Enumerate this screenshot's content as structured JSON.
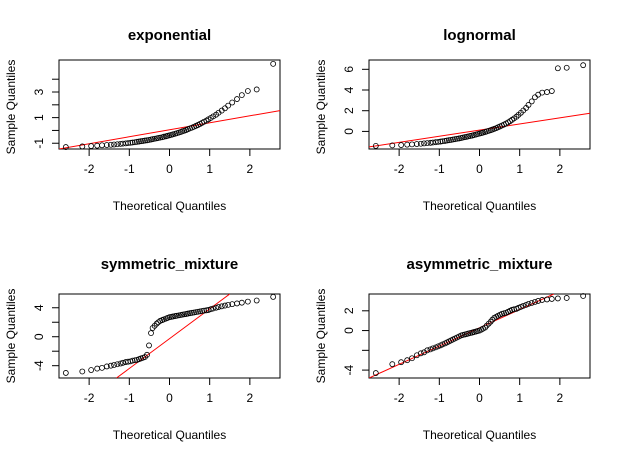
{
  "chart_data": [
    {
      "type": "scatter",
      "title": "exponential",
      "xlabel": "Theoretical Quantiles",
      "ylabel": "Sample Quantiles",
      "xlim": [
        -2.75,
        2.75
      ],
      "ylim": [
        -1.45,
        5.5
      ],
      "xticks": [
        -2,
        -1,
        0,
        1,
        2
      ],
      "yticks": [
        -1,
        1,
        3
      ],
      "ytick_minor": [
        0,
        2,
        4
      ],
      "grid": false,
      "point_color": "#000000",
      "line_color": "#ff0000",
      "reference_line": {
        "x": [
          -2.75,
          2.75
        ],
        "y": [
          -1.45,
          1.55
        ]
      },
      "points": {
        "x": [
          -2.58,
          -2.17,
          -1.95,
          -1.8,
          -1.68,
          -1.56,
          -1.46,
          -1.38,
          -1.3,
          -1.22,
          -1.16,
          -1.09,
          -1.03,
          -0.97,
          -0.92,
          -0.86,
          -0.81,
          -0.76,
          -0.71,
          -0.66,
          -0.61,
          -0.56,
          -0.51,
          -0.46,
          -0.42,
          -0.37,
          -0.32,
          -0.28,
          -0.23,
          -0.18,
          -0.14,
          -0.09,
          -0.05,
          0.0,
          0.05,
          0.09,
          0.14,
          0.18,
          0.23,
          0.28,
          0.32,
          0.37,
          0.42,
          0.46,
          0.51,
          0.56,
          0.61,
          0.66,
          0.71,
          0.76,
          0.81,
          0.86,
          0.92,
          0.97,
          1.03,
          1.09,
          1.16,
          1.22,
          1.3,
          1.38,
          1.46,
          1.56,
          1.68,
          1.8,
          1.95,
          2.17,
          2.58
        ],
        "y": [
          -1.3,
          -1.25,
          -1.22,
          -1.19,
          -1.16,
          -1.14,
          -1.12,
          -1.1,
          -1.08,
          -1.05,
          -1.03,
          -1.01,
          -0.99,
          -0.96,
          -0.94,
          -0.92,
          -0.89,
          -0.87,
          -0.84,
          -0.82,
          -0.79,
          -0.77,
          -0.74,
          -0.71,
          -0.68,
          -0.65,
          -0.62,
          -0.59,
          -0.56,
          -0.53,
          -0.49,
          -0.46,
          -0.42,
          -0.38,
          -0.34,
          -0.3,
          -0.26,
          -0.22,
          -0.17,
          -0.12,
          -0.07,
          -0.02,
          0.04,
          0.1,
          0.16,
          0.22,
          0.29,
          0.36,
          0.43,
          0.51,
          0.59,
          0.68,
          0.77,
          0.87,
          0.98,
          1.1,
          1.23,
          1.38,
          1.55,
          1.73,
          1.94,
          2.18,
          2.45,
          2.76,
          3.08,
          3.2,
          5.2
        ]
      }
    },
    {
      "type": "scatter",
      "title": "lognormal",
      "xlabel": "Theoretical Quantiles",
      "ylabel": "Sample Quantiles",
      "xlim": [
        -2.75,
        2.75
      ],
      "ylim": [
        -1.7,
        6.9
      ],
      "xticks": [
        -2,
        -1,
        0,
        1,
        2
      ],
      "yticks": [
        0,
        2,
        4,
        6
      ],
      "ytick_minor": [],
      "grid": false,
      "point_color": "#000000",
      "line_color": "#ff0000",
      "reference_line": {
        "x": [
          -2.75,
          2.75
        ],
        "y": [
          -1.5,
          1.75
        ]
      },
      "points": {
        "x": [
          -2.58,
          -2.17,
          -1.95,
          -1.8,
          -1.68,
          -1.56,
          -1.46,
          -1.38,
          -1.3,
          -1.22,
          -1.16,
          -1.09,
          -1.03,
          -0.97,
          -0.92,
          -0.86,
          -0.81,
          -0.76,
          -0.71,
          -0.66,
          -0.61,
          -0.56,
          -0.51,
          -0.46,
          -0.42,
          -0.37,
          -0.32,
          -0.28,
          -0.23,
          -0.18,
          -0.14,
          -0.09,
          -0.05,
          0.0,
          0.05,
          0.09,
          0.14,
          0.18,
          0.23,
          0.28,
          0.32,
          0.37,
          0.42,
          0.46,
          0.51,
          0.56,
          0.61,
          0.66,
          0.71,
          0.76,
          0.81,
          0.86,
          0.92,
          0.97,
          1.03,
          1.09,
          1.16,
          1.22,
          1.3,
          1.38,
          1.46,
          1.56,
          1.68,
          1.8,
          1.95,
          2.17,
          2.58
        ],
        "y": [
          -1.4,
          -1.35,
          -1.32,
          -1.28,
          -1.25,
          -1.22,
          -1.19,
          -1.16,
          -1.13,
          -1.1,
          -1.07,
          -1.04,
          -1.01,
          -0.98,
          -0.95,
          -0.92,
          -0.88,
          -0.85,
          -0.82,
          -0.78,
          -0.75,
          -0.71,
          -0.68,
          -0.64,
          -0.6,
          -0.56,
          -0.52,
          -0.48,
          -0.44,
          -0.4,
          -0.35,
          -0.31,
          -0.26,
          -0.21,
          -0.16,
          -0.11,
          -0.06,
          0.0,
          0.06,
          0.12,
          0.18,
          0.25,
          0.32,
          0.4,
          0.48,
          0.57,
          0.66,
          0.76,
          0.87,
          0.99,
          1.12,
          1.26,
          1.42,
          1.6,
          1.8,
          2.02,
          2.27,
          2.56,
          2.9,
          3.3,
          3.55,
          3.75,
          3.8,
          3.9,
          6.1,
          6.15,
          6.4
        ]
      }
    },
    {
      "type": "scatter",
      "title": "symmetric_mixture",
      "xlabel": "Theoretical Quantiles",
      "ylabel": "Sample Quantiles",
      "xlim": [
        -2.75,
        2.75
      ],
      "ylim": [
        -5.7,
        5.9
      ],
      "xticks": [
        -2,
        -1,
        0,
        1,
        2
      ],
      "yticks": [
        -4,
        0,
        4
      ],
      "ytick_minor": [
        -2,
        2
      ],
      "grid": false,
      "point_color": "#000000",
      "line_color": "#ff0000",
      "reference_line": {
        "x": [
          -1.32,
          1.5
        ],
        "y": [
          -5.7,
          5.9
        ]
      },
      "points": {
        "x": [
          -2.58,
          -2.17,
          -1.95,
          -1.8,
          -1.68,
          -1.56,
          -1.46,
          -1.38,
          -1.3,
          -1.22,
          -1.16,
          -1.09,
          -1.03,
          -0.97,
          -0.92,
          -0.86,
          -0.81,
          -0.76,
          -0.71,
          -0.66,
          -0.61,
          -0.56,
          -0.51,
          -0.46,
          -0.42,
          -0.37,
          -0.32,
          -0.28,
          -0.23,
          -0.18,
          -0.14,
          -0.09,
          -0.05,
          0.0,
          0.05,
          0.09,
          0.14,
          0.18,
          0.23,
          0.28,
          0.32,
          0.37,
          0.42,
          0.46,
          0.51,
          0.56,
          0.61,
          0.66,
          0.71,
          0.76,
          0.81,
          0.86,
          0.92,
          0.97,
          1.03,
          1.09,
          1.16,
          1.22,
          1.3,
          1.38,
          1.46,
          1.56,
          1.68,
          1.8,
          1.95,
          2.17,
          2.58
        ],
        "y": [
          -5.0,
          -4.8,
          -4.6,
          -4.4,
          -4.3,
          -4.1,
          -4.0,
          -3.9,
          -3.8,
          -3.7,
          -3.6,
          -3.5,
          -3.45,
          -3.4,
          -3.3,
          -3.25,
          -3.2,
          -3.1,
          -3.0,
          -2.9,
          -2.8,
          -2.5,
          -1.2,
          0.5,
          1.2,
          1.5,
          1.8,
          2.0,
          2.2,
          2.3,
          2.4,
          2.5,
          2.6,
          2.7,
          2.75,
          2.8,
          2.85,
          2.9,
          2.95,
          3.0,
          3.05,
          3.1,
          3.15,
          3.2,
          3.25,
          3.3,
          3.35,
          3.4,
          3.45,
          3.5,
          3.55,
          3.6,
          3.65,
          3.7,
          3.8,
          3.9,
          4.0,
          4.1,
          4.2,
          4.3,
          4.4,
          4.5,
          4.6,
          4.7,
          4.85,
          5.0,
          5.5
        ]
      }
    },
    {
      "type": "scatter",
      "title": "asymmetric_mixture",
      "xlabel": "Theoretical Quantiles",
      "ylabel": "Sample Quantiles",
      "xlim": [
        -2.75,
        2.75
      ],
      "ylim": [
        -4.8,
        3.7
      ],
      "xticks": [
        -2,
        -1,
        0,
        1,
        2
      ],
      "yticks": [
        -4,
        0,
        2
      ],
      "ytick_minor": [
        -2
      ],
      "grid": false,
      "point_color": "#000000",
      "line_color": "#ff0000",
      "reference_line": {
        "x": [
          -2.75,
          1.85
        ],
        "y": [
          -4.8,
          3.7
        ]
      },
      "points": {
        "x": [
          -2.58,
          -2.17,
          -1.95,
          -1.8,
          -1.68,
          -1.56,
          -1.46,
          -1.38,
          -1.3,
          -1.22,
          -1.16,
          -1.09,
          -1.03,
          -0.97,
          -0.92,
          -0.86,
          -0.81,
          -0.76,
          -0.71,
          -0.66,
          -0.61,
          -0.56,
          -0.51,
          -0.46,
          -0.42,
          -0.37,
          -0.32,
          -0.28,
          -0.23,
          -0.18,
          -0.14,
          -0.09,
          -0.05,
          0.0,
          0.05,
          0.09,
          0.14,
          0.18,
          0.23,
          0.28,
          0.32,
          0.37,
          0.42,
          0.46,
          0.51,
          0.56,
          0.61,
          0.66,
          0.71,
          0.76,
          0.81,
          0.86,
          0.92,
          0.97,
          1.03,
          1.09,
          1.16,
          1.22,
          1.3,
          1.38,
          1.46,
          1.56,
          1.68,
          1.8,
          1.95,
          2.17,
          2.58
        ],
        "y": [
          -4.3,
          -3.4,
          -3.2,
          -3.0,
          -2.8,
          -2.5,
          -2.3,
          -2.2,
          -2.0,
          -1.9,
          -1.8,
          -1.7,
          -1.6,
          -1.5,
          -1.4,
          -1.3,
          -1.2,
          -1.1,
          -1.0,
          -0.9,
          -0.8,
          -0.7,
          -0.6,
          -0.5,
          -0.45,
          -0.4,
          -0.35,
          -0.3,
          -0.25,
          -0.2,
          -0.15,
          -0.1,
          -0.05,
          0.0,
          0.1,
          0.2,
          0.3,
          0.5,
          0.7,
          0.9,
          1.1,
          1.3,
          1.4,
          1.5,
          1.6,
          1.7,
          1.75,
          1.8,
          1.9,
          2.0,
          2.1,
          2.15,
          2.2,
          2.3,
          2.4,
          2.5,
          2.6,
          2.7,
          2.8,
          2.9,
          3.0,
          3.1,
          3.15,
          3.2,
          3.25,
          3.3,
          3.5
        ]
      }
    }
  ]
}
